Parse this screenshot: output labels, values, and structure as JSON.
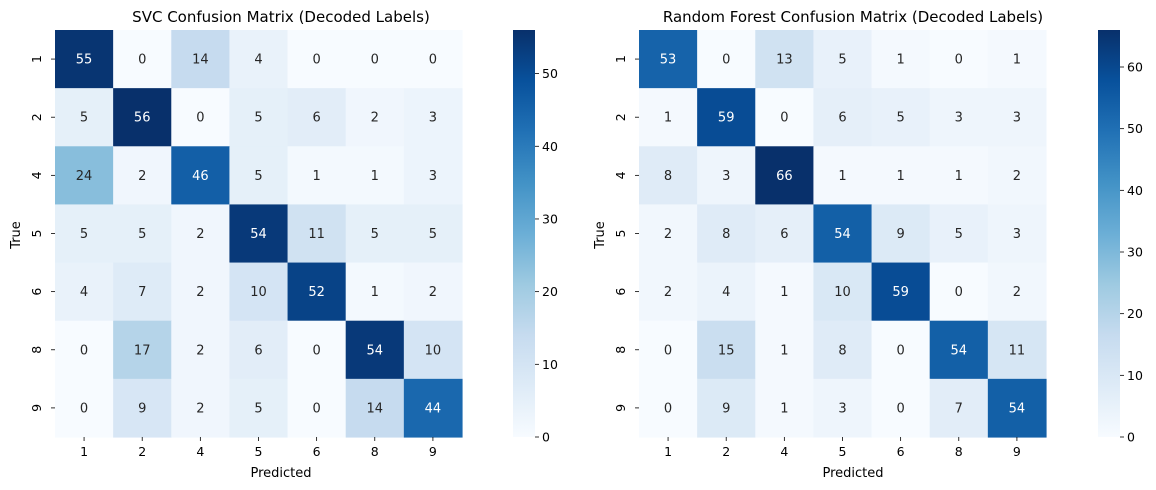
{
  "chart_data": [
    {
      "type": "heatmap",
      "title": "SVC Confusion Matrix (Decoded Labels)",
      "xlabel": "Predicted",
      "ylabel": "True",
      "x_categories": [
        "1",
        "2",
        "4",
        "5",
        "6",
        "8",
        "9"
      ],
      "y_categories": [
        "1",
        "2",
        "4",
        "5",
        "6",
        "8",
        "9"
      ],
      "values": [
        [
          55,
          0,
          14,
          4,
          0,
          0,
          0
        ],
        [
          5,
          56,
          0,
          5,
          6,
          2,
          3
        ],
        [
          24,
          2,
          46,
          5,
          1,
          1,
          3
        ],
        [
          5,
          5,
          2,
          54,
          11,
          5,
          5
        ],
        [
          4,
          7,
          2,
          10,
          52,
          1,
          2
        ],
        [
          0,
          17,
          2,
          6,
          0,
          54,
          10
        ],
        [
          0,
          9,
          2,
          5,
          0,
          14,
          44
        ]
      ],
      "colorbar": {
        "min": 0,
        "max": 56,
        "ticks": [
          0,
          10,
          20,
          30,
          40,
          50
        ]
      },
      "colormap": "Blues",
      "grid": false
    },
    {
      "type": "heatmap",
      "title": "Random Forest Confusion Matrix (Decoded Labels)",
      "xlabel": "Predicted",
      "ylabel": "True",
      "x_categories": [
        "1",
        "2",
        "4",
        "5",
        "6",
        "8",
        "9"
      ],
      "y_categories": [
        "1",
        "2",
        "4",
        "5",
        "6",
        "8",
        "9"
      ],
      "values": [
        [
          53,
          0,
          13,
          5,
          1,
          0,
          1
        ],
        [
          1,
          59,
          0,
          6,
          5,
          3,
          3
        ],
        [
          8,
          3,
          66,
          1,
          1,
          1,
          2
        ],
        [
          2,
          8,
          6,
          54,
          9,
          5,
          3
        ],
        [
          2,
          4,
          1,
          10,
          59,
          0,
          2
        ],
        [
          0,
          15,
          1,
          8,
          0,
          54,
          11
        ],
        [
          0,
          9,
          1,
          3,
          0,
          7,
          54
        ]
      ],
      "colorbar": {
        "min": 0,
        "max": 66,
        "ticks": [
          0,
          10,
          20,
          30,
          40,
          50,
          60
        ]
      },
      "colormap": "Blues",
      "grid": false
    }
  ]
}
